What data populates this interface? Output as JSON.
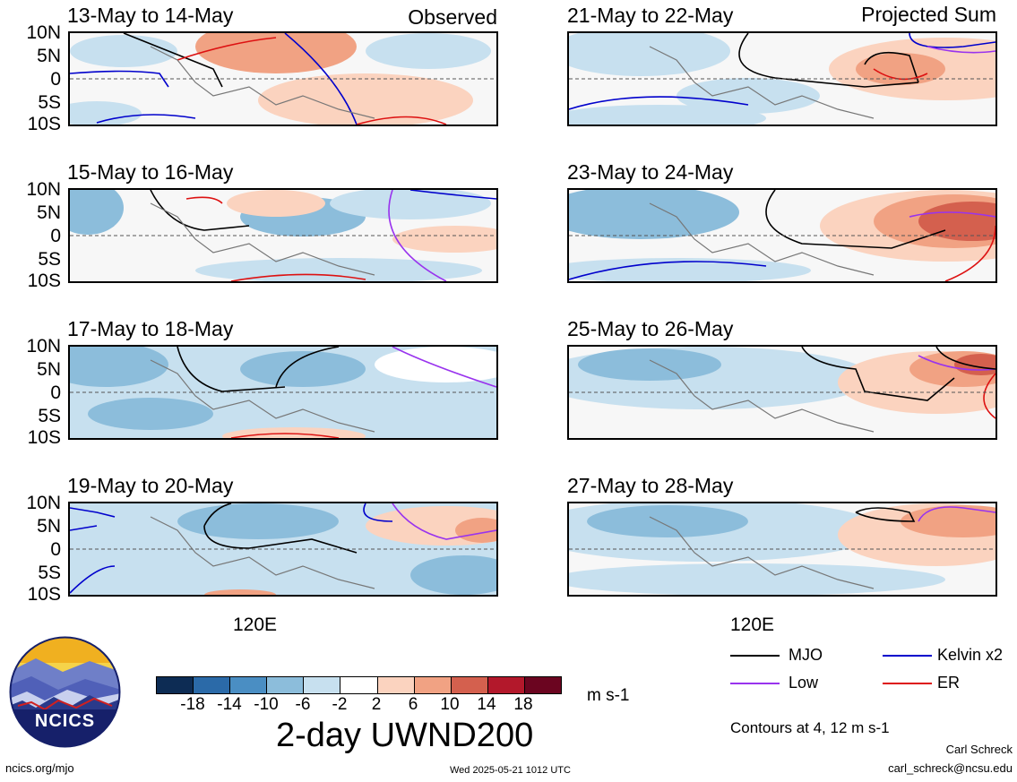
{
  "header": {
    "observed_label": "Observed",
    "projected_label": "Projected Sum"
  },
  "panels": [
    {
      "title": "13-May to 14-May"
    },
    {
      "title": "15-May to 16-May"
    },
    {
      "title": "17-May to 18-May"
    },
    {
      "title": "19-May to 20-May"
    },
    {
      "title": "21-May to 22-May"
    },
    {
      "title": "23-May to 24-May"
    },
    {
      "title": "25-May to 26-May"
    },
    {
      "title": "27-May to 28-May"
    }
  ],
  "lat_ticks": [
    "10N",
    "5N",
    "0",
    "5S",
    "10S"
  ],
  "lon_label": "120E",
  "colorbar": {
    "title": "2-day UWND200",
    "units": "m s-1",
    "labels": [
      "-18",
      "-14",
      "-10",
      "-6",
      "-2",
      "2",
      "6",
      "10",
      "14",
      "18"
    ],
    "colors": [
      "#0d2c54",
      "#2b6aa8",
      "#4a8ec3",
      "#8cbddb",
      "#c7e0ef",
      "#ffffff",
      "#fbd3bf",
      "#f1a283",
      "#d4604e",
      "#b3182b",
      "#6b0520"
    ]
  },
  "legend": {
    "items": [
      {
        "label": "MJO",
        "color": "#000000"
      },
      {
        "label": "Kelvin x2",
        "color": "#0000cc"
      },
      {
        "label": "Low",
        "color": "#9933ee"
      },
      {
        "label": "ER",
        "color": "#dd1111"
      }
    ],
    "contour_note": "Contours at 4, 12 m s-1"
  },
  "footer": {
    "site": "ncics.org/mjo",
    "timestamp": "Wed 2025-05-21 1012 UTC",
    "author": "Carl Schreck",
    "email": "carl_schreck@ncsu.edu",
    "logo_text": "NCICS"
  }
}
